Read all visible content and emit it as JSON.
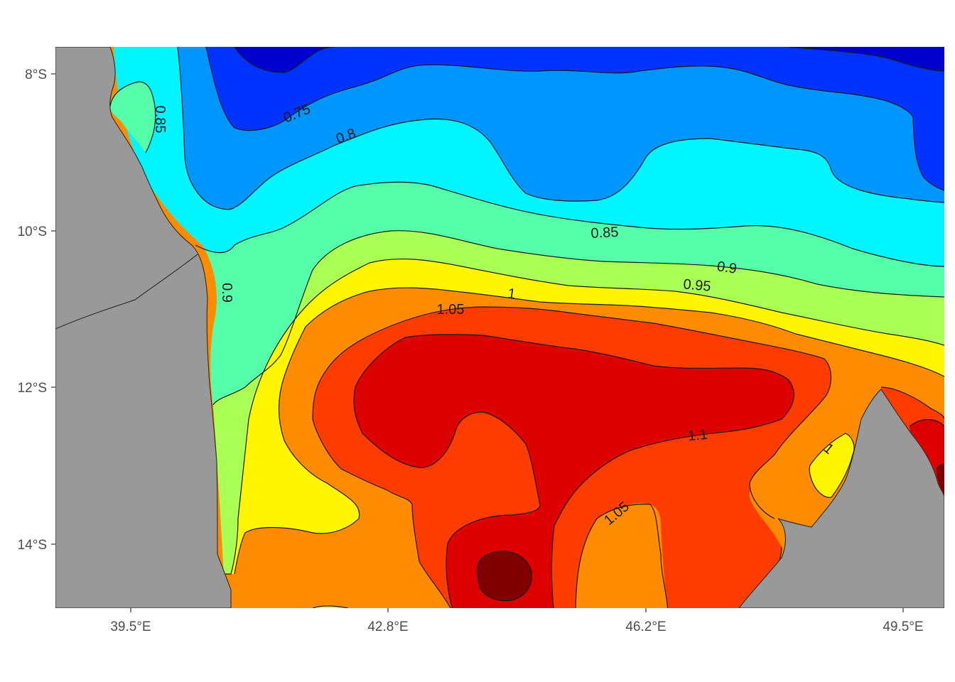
{
  "map": {
    "x_ticks": [
      "39.5°E",
      "42.8°E",
      "46.2°E",
      "49.5°E"
    ],
    "y_ticks": [
      "8°S",
      "10°S",
      "12°S",
      "14°S"
    ],
    "contour_labels": [
      "0.75",
      "0.8",
      "0.85",
      "0.85",
      "0.9",
      "0.9",
      "0.95",
      "1",
      "1.05",
      "1.1",
      "1.05",
      "1"
    ],
    "colors": {
      "level_070": "#0000CD",
      "level_075": "#0033FF",
      "level_080": "#0096FF",
      "level_085": "#00F5FF",
      "level_090": "#55FFAA",
      "level_095": "#AAFF55",
      "level_100": "#FFF500",
      "level_105": "#FF8C00",
      "level_110": "#FF3C00",
      "level_115": "#DD0000",
      "level_120": "#800000",
      "land": "#999999"
    }
  }
}
